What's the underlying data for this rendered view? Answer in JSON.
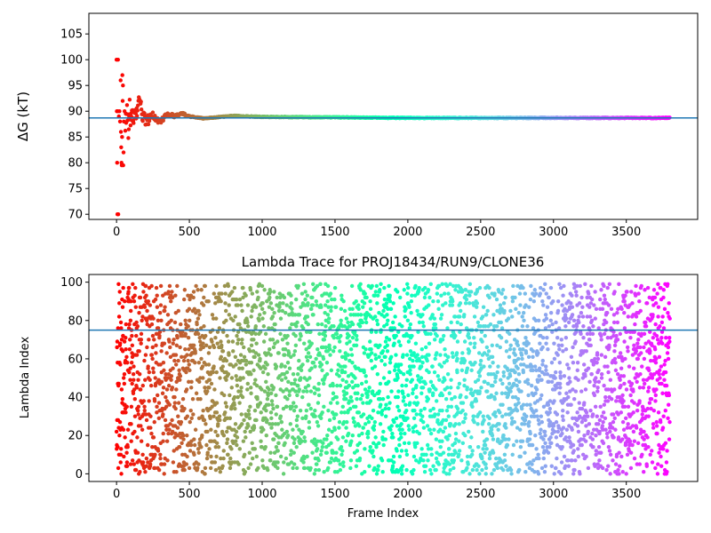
{
  "figure": {
    "background": "#ffffff"
  },
  "chart_data": [
    {
      "type": "scatter",
      "title": "",
      "xlabel": "",
      "ylabel": "ΔG (kT)",
      "xlim": [
        -190,
        3990
      ],
      "ylim": [
        69,
        109
      ],
      "xticks": [
        0,
        500,
        1000,
        1500,
        2000,
        2500,
        3000,
        3500
      ],
      "yticks": [
        70,
        75,
        80,
        85,
        90,
        95,
        100,
        105
      ],
      "colormap": "rainbow_r",
      "frames": 3800,
      "hline": {
        "y": 88.7,
        "color": "#1f77b4"
      },
      "series": [
        {
          "values_sampled": [
            [
              0,
              100
            ],
            [
              2,
              90
            ],
            [
              4,
              80
            ],
            [
              6,
              70
            ],
            [
              8,
              90
            ],
            [
              10,
              100
            ],
            [
              12,
              70
            ],
            [
              16,
              89
            ],
            [
              20,
              90
            ],
            [
              24,
              88
            ],
            [
              28,
              96
            ],
            [
              30,
              86
            ],
            [
              32,
              83
            ],
            [
              34,
              80
            ],
            [
              36,
              79.5
            ],
            [
              38,
              85
            ],
            [
              40,
              97
            ],
            [
              42,
              92
            ],
            [
              44,
              95
            ],
            [
              46,
              79.5
            ],
            [
              48,
              82
            ],
            [
              50,
              88
            ],
            [
              55,
              90
            ],
            [
              60,
              89
            ],
            [
              65,
              86
            ],
            [
              70,
              91
            ],
            [
              75,
              89
            ],
            [
              80,
              87
            ],
            [
              90,
              90
            ],
            [
              100,
              88.5
            ],
            [
              110,
              89.5
            ],
            [
              120,
              88
            ],
            [
              140,
              90
            ],
            [
              160,
              92
            ],
            [
              180,
              89
            ],
            [
              200,
              88
            ],
            [
              250,
              89
            ],
            [
              300,
              88
            ],
            [
              350,
              89.5
            ],
            [
              400,
              89
            ],
            [
              450,
              89.6
            ],
            [
              500,
              89
            ],
            [
              600,
              88.6
            ],
            [
              800,
              89.1
            ],
            [
              1000,
              88.9
            ],
            [
              1500,
              88.8
            ],
            [
              2000,
              88.7
            ],
            [
              2500,
              88.7
            ],
            [
              3000,
              88.7
            ],
            [
              3500,
              88.7
            ],
            [
              3790,
              88.7
            ]
          ]
        }
      ]
    },
    {
      "type": "scatter",
      "title": "Lambda Trace for PROJ18434/RUN9/CLONE36",
      "xlabel": "Frame Index",
      "ylabel": "Lambda Index",
      "xlim": [
        -190,
        3990
      ],
      "ylim": [
        -4,
        104
      ],
      "xticks": [
        0,
        500,
        1000,
        1500,
        2000,
        2500,
        3000,
        3500
      ],
      "yticks": [
        0,
        20,
        40,
        60,
        80,
        100
      ],
      "colormap": "rainbow_r",
      "frames": 3800,
      "hline": {
        "y": 75,
        "color": "#1f77b4"
      },
      "series": [
        {
          "distribution": "uniform",
          "range": [
            0,
            99
          ],
          "step": 1
        }
      ]
    }
  ]
}
